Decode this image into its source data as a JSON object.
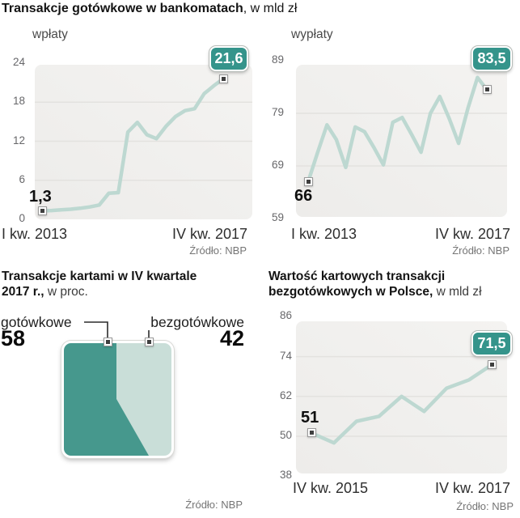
{
  "page_title": {
    "bold": "Transakcje gotówkowe w bankomatach",
    "rest": ", w mld zł"
  },
  "colors": {
    "accent_teal": "#35948b",
    "line": "#bdd8d1",
    "square_dark": "#46988d",
    "square_light": "#c9ded8",
    "plot_bg": "#f0efed",
    "grid": "#e3e2df"
  },
  "chart_data": [
    {
      "id": "atm-wplaty",
      "type": "line",
      "title": "wpłaty",
      "ylim": [
        0,
        24
      ],
      "y_ticks": [
        24,
        18,
        12,
        6,
        0
      ],
      "x_start": "I kw. 2013",
      "x_end": "IV kw. 2017",
      "values": [
        1.3,
        1.35,
        1.45,
        1.55,
        1.7,
        1.9,
        2.2,
        4.0,
        4.1,
        13.4,
        14.9,
        13.0,
        12.4,
        14.3,
        15.8,
        16.7,
        17.0,
        19.3,
        20.5,
        21.6
      ],
      "first_point_label": "1,3",
      "last_point_label": "21,6",
      "source": "Źródło: NBP"
    },
    {
      "id": "atm-wyplaty",
      "type": "line",
      "title": "wypłaty",
      "ylim": [
        59,
        89
      ],
      "y_ticks": [
        89,
        79,
        69,
        59
      ],
      "x_start": "I kw. 2013",
      "x_end": "IV kw. 2017",
      "values": [
        66,
        71.5,
        76.8,
        74,
        68.7,
        76.4,
        75.5,
        72.5,
        69.2,
        77.3,
        78.2,
        75,
        71.6,
        79,
        82.2,
        78,
        73.3,
        80,
        85.8,
        83.5
      ],
      "first_point_label": "66",
      "last_point_label": "83,5",
      "source": "Źródło: NBP"
    },
    {
      "id": "karty-struktura",
      "type": "area-square",
      "title": {
        "line1": "Transakcje kartami w IV kwartale",
        "line2_bold": "2017 r.,",
        "line2_rest": " w proc."
      },
      "categories": [
        "gotówkowe",
        "bezgotówkowe"
      ],
      "values": [
        58,
        42
      ],
      "value_labels": [
        "58",
        "42"
      ],
      "source": "Źródło: NBP"
    },
    {
      "id": "karty-bezgotowkowe-wartosc",
      "type": "line",
      "title": {
        "line1": "Wartość kartowych transakcji",
        "line2_bold": "bezgotówkowych w Polsce,",
        "line2_rest": " w mld zł"
      },
      "ylim": [
        38,
        86
      ],
      "y_ticks": [
        86,
        74,
        62,
        50,
        38
      ],
      "x_start": "IV kw. 2015",
      "x_end": "IV kw. 2017",
      "values": [
        51,
        48,
        54.5,
        56,
        62,
        57.5,
        64.5,
        67,
        71.5
      ],
      "first_point_label": "51",
      "last_point_label": "71,5",
      "source": "Źródło: NBP"
    }
  ]
}
